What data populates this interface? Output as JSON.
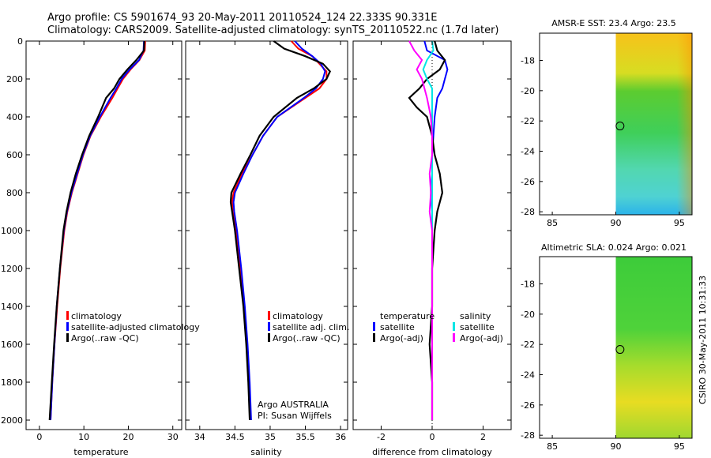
{
  "title": {
    "line1": "Argo profile: CS 5901674_93 20-May-2011 20110524_124 22.333S 90.331E",
    "line2": "Climatology: CARS2009. Satellite-adjusted climatology: synTS_20110522.nc (1.7d later)"
  },
  "side_label": "CSIRO 30-May-2011 10:31:33",
  "colors": {
    "red": "#ff0000",
    "blue": "#0000ff",
    "black": "#000000",
    "cyan": "#00e5e5",
    "magenta": "#ff00ff"
  },
  "chart_data": [
    {
      "id": "temperature",
      "type": "line",
      "xlabel": "temperature",
      "xlim": [
        -3,
        32
      ],
      "xticks": [
        0,
        10,
        20,
        30
      ],
      "ylim": [
        0,
        2050
      ],
      "yticks": [
        0,
        200,
        400,
        600,
        800,
        1000,
        1200,
        1400,
        1600,
        1800,
        2000
      ],
      "legend": {
        "placement": "lower-right",
        "entries": [
          "climatology",
          "satellite-adjusted climatology",
          "Argo(..raw -QC)"
        ]
      },
      "series": [
        {
          "name": "climatology",
          "color": "red",
          "depth": [
            0,
            50,
            100,
            150,
            200,
            250,
            300,
            400,
            500,
            600,
            700,
            800,
            900,
            1000,
            1200,
            1400,
            1600,
            1800,
            2000
          ],
          "values": [
            23.8,
            23.7,
            22.5,
            20.5,
            18.8,
            17.6,
            16.4,
            13.8,
            11.5,
            9.9,
            8.6,
            7.3,
            6.3,
            5.6,
            4.7,
            4.0,
            3.4,
            2.9,
            2.5
          ]
        },
        {
          "name": "satellite-adjusted climatology",
          "color": "blue",
          "depth": [
            0,
            50,
            100,
            150,
            200,
            250,
            300,
            400,
            500,
            600,
            700,
            800,
            900,
            1000,
            1200,
            1400,
            1600,
            1800,
            2000
          ],
          "values": [
            23.5,
            23.4,
            22.4,
            20.3,
            18.5,
            17.3,
            16.0,
            13.6,
            11.4,
            9.8,
            8.5,
            7.2,
            6.2,
            5.5,
            4.6,
            3.9,
            3.4,
            2.9,
            2.5
          ]
        },
        {
          "name": "Argo(..raw -QC)",
          "color": "black",
          "depth": [
            0,
            50,
            100,
            150,
            200,
            250,
            300,
            400,
            500,
            600,
            700,
            800,
            900,
            1000,
            1200,
            1400,
            1600,
            1800,
            2000
          ],
          "values": [
            23.6,
            23.5,
            21.8,
            19.8,
            18.0,
            16.8,
            15.0,
            13.2,
            11.2,
            9.6,
            8.2,
            7.0,
            6.1,
            5.4,
            4.6,
            3.9,
            3.3,
            2.8,
            2.3
          ]
        }
      ]
    },
    {
      "id": "salinity",
      "type": "line",
      "xlabel": "salinity",
      "xlim": [
        33.8,
        36.1
      ],
      "xticks": [
        34,
        34.5,
        35,
        35.5,
        36
      ],
      "ylim": [
        0,
        2050
      ],
      "legend": {
        "placement": "lower-right",
        "entries": [
          "climatology",
          "satellite adj. clim.",
          "Argo(..raw -QC)"
        ]
      },
      "annotation": [
        "Argo AUSTRALIA",
        "PI: Susan Wijffels"
      ],
      "series": [
        {
          "name": "climatology",
          "color": "red",
          "depth": [
            0,
            40,
            80,
            120,
            160,
            200,
            250,
            300,
            400,
            500,
            600,
            700,
            800,
            850,
            900,
            1000,
            1200,
            1400,
            1600,
            1800,
            2000
          ],
          "values": [
            35.3,
            35.4,
            35.6,
            35.7,
            35.8,
            35.8,
            35.7,
            35.5,
            35.1,
            34.9,
            34.75,
            34.6,
            34.48,
            34.46,
            34.47,
            34.52,
            34.58,
            34.63,
            34.67,
            34.7,
            34.72
          ]
        },
        {
          "name": "satellite adj. clim.",
          "color": "blue",
          "depth": [
            0,
            40,
            80,
            120,
            160,
            200,
            250,
            300,
            400,
            500,
            600,
            700,
            800,
            850,
            900,
            1000,
            1200,
            1400,
            1600,
            1800,
            2000
          ],
          "values": [
            35.35,
            35.45,
            35.6,
            35.72,
            35.78,
            35.75,
            35.65,
            35.48,
            35.1,
            34.9,
            34.75,
            34.62,
            34.5,
            34.48,
            34.49,
            34.53,
            34.59,
            34.64,
            34.68,
            34.71,
            34.73
          ]
        },
        {
          "name": "Argo(..raw -QC)",
          "color": "black",
          "depth": [
            0,
            40,
            80,
            120,
            160,
            200,
            250,
            300,
            400,
            500,
            600,
            700,
            800,
            850,
            900,
            1000,
            1200,
            1400,
            1600,
            1800,
            2000
          ],
          "values": [
            35.05,
            35.2,
            35.5,
            35.75,
            35.85,
            35.8,
            35.62,
            35.38,
            35.05,
            34.85,
            34.72,
            34.58,
            34.45,
            34.44,
            34.46,
            34.5,
            34.56,
            34.62,
            34.66,
            34.69,
            34.71
          ]
        }
      ]
    },
    {
      "id": "difference",
      "type": "line",
      "xlabel": "difference from climatology",
      "xlim": [
        -3.1,
        3.1
      ],
      "xticks": [
        -2,
        0,
        2
      ],
      "ylim": [
        0,
        2050
      ],
      "legend": {
        "placement": "lower",
        "groups": [
          {
            "title": "temperature",
            "entries": [
              "satellite",
              "Argo(-adj)"
            ]
          },
          {
            "title": "salinity",
            "entries": [
              "satellite",
              "Argo(-adj)"
            ]
          }
        ]
      },
      "series": [
        {
          "name": "temperature satellite",
          "color": "blue",
          "depth": [
            0,
            50,
            100,
            150,
            200,
            250,
            300,
            400,
            500,
            600,
            700,
            800,
            900,
            1000,
            1200,
            1400,
            1600,
            1800,
            2000
          ],
          "values": [
            -0.3,
            -0.2,
            0.5,
            0.6,
            0.5,
            0.4,
            0.2,
            0.1,
            0.05,
            0.0,
            0.0,
            -0.05,
            0.0,
            0.0,
            0.0,
            0.0,
            0.0,
            0.0,
            0.0
          ]
        },
        {
          "name": "temperature Argo(-adj)",
          "color": "black",
          "depth": [
            0,
            50,
            100,
            150,
            200,
            250,
            300,
            350,
            400,
            500,
            600,
            700,
            800,
            900,
            1000,
            1200,
            1400,
            1600,
            1800,
            2000
          ],
          "values": [
            0.1,
            0.2,
            0.5,
            0.3,
            -0.2,
            -0.5,
            -0.9,
            -0.6,
            -0.2,
            0.0,
            0.1,
            0.3,
            0.4,
            0.2,
            0.1,
            0.0,
            0.0,
            -0.1,
            0.0,
            0.0
          ]
        },
        {
          "name": "salinity satellite",
          "color": "cyan",
          "depth": [
            0,
            50,
            100,
            150,
            200,
            250,
            300,
            400,
            500,
            600,
            700,
            800,
            900,
            1000,
            1200,
            1400,
            1600,
            1800,
            2000
          ],
          "values": [
            0.0,
            0.05,
            -0.2,
            -0.35,
            -0.2,
            0.0,
            0.0,
            0.0,
            0.0,
            0.0,
            0.0,
            0.0,
            0.0,
            0.0,
            0.0,
            0.0,
            0.0,
            0.0,
            0.0
          ]
        },
        {
          "name": "salinity Argo(-adj)",
          "color": "magenta",
          "depth": [
            0,
            50,
            100,
            150,
            200,
            250,
            300,
            400,
            500,
            600,
            700,
            800,
            900,
            1000,
            1200,
            1400,
            1600,
            1800,
            2000
          ],
          "values": [
            -0.9,
            -0.7,
            -0.4,
            -0.6,
            -0.4,
            -0.3,
            -0.2,
            -0.05,
            0.0,
            0.0,
            -0.1,
            -0.05,
            -0.1,
            0.0,
            0.0,
            0.0,
            0.0,
            0.0,
            0.0
          ]
        }
      ]
    },
    {
      "id": "sst_map",
      "type": "heatmap",
      "title": "AMSR-E SST: 23.4  Argo: 23.5",
      "xlim": [
        84,
        96
      ],
      "ylim": [
        -28.2,
        -16.2
      ],
      "xticks": [
        85,
        90,
        95
      ],
      "yticks": [
        -18,
        -20,
        -22,
        -24,
        -26,
        -28
      ],
      "data_lon_start": 90,
      "marker": {
        "lon": 90.331,
        "lat": -22.333
      }
    },
    {
      "id": "sla_map",
      "type": "heatmap",
      "title": "Altimetric SLA: 0.024  Argo: 0.021",
      "xlim": [
        84,
        96
      ],
      "ylim": [
        -28.2,
        -16.2
      ],
      "xticks": [
        85,
        90,
        95
      ],
      "yticks": [
        -18,
        -20,
        -22,
        -24,
        -26,
        -28
      ],
      "data_lon_start": 90,
      "marker": {
        "lon": 90.331,
        "lat": -22.333
      }
    }
  ]
}
